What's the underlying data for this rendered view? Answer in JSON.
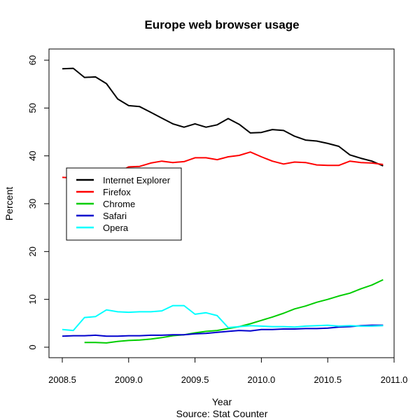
{
  "chart_data": {
    "type": "line",
    "title": "Europe web browser usage",
    "xlabel": "Year",
    "ylabel": "Percent",
    "caption": "Source: Stat Counter",
    "xlim": [
      2008.5,
      2010.92
    ],
    "ylim": [
      0,
      60
    ],
    "x_ticks": [
      2008.5,
      2009.0,
      2009.5,
      2010.0,
      2010.5,
      2011.0
    ],
    "x_tick_labels": [
      "2008.5",
      "2009.0",
      "2009.5",
      "2010.0",
      "2010.5",
      "2011.0"
    ],
    "y_ticks": [
      0,
      10,
      20,
      30,
      40,
      50,
      60
    ],
    "y_tick_labels": [
      "0",
      "10",
      "20",
      "30",
      "40",
      "50",
      "60"
    ],
    "grid": false,
    "legend_position": "center-left",
    "series": [
      {
        "name": "Internet Explorer",
        "color": "#000000",
        "points": [
          [
            2008.5,
            58.2
          ],
          [
            2008.583,
            58.3
          ],
          [
            2008.667,
            56.4
          ],
          [
            2008.75,
            56.5
          ],
          [
            2008.833,
            55.1
          ],
          [
            2008.917,
            51.9
          ],
          [
            2009.0,
            50.5
          ],
          [
            2009.083,
            50.3
          ],
          [
            2009.167,
            49.1
          ],
          [
            2009.25,
            47.9
          ],
          [
            2009.333,
            46.7
          ],
          [
            2009.417,
            46.0
          ],
          [
            2009.5,
            46.7
          ],
          [
            2009.583,
            46.0
          ],
          [
            2009.667,
            46.5
          ],
          [
            2009.75,
            47.8
          ],
          [
            2009.833,
            46.6
          ],
          [
            2009.917,
            44.8
          ],
          [
            2010.0,
            44.9
          ],
          [
            2010.083,
            45.5
          ],
          [
            2010.167,
            45.3
          ],
          [
            2010.25,
            44.1
          ],
          [
            2010.333,
            43.3
          ],
          [
            2010.417,
            43.1
          ],
          [
            2010.5,
            42.6
          ],
          [
            2010.583,
            42.0
          ],
          [
            2010.667,
            40.2
          ],
          [
            2010.75,
            39.5
          ],
          [
            2010.833,
            38.9
          ],
          [
            2010.917,
            37.9
          ]
        ]
      },
      {
        "name": "Firefox",
        "color": "#ff0000",
        "points": [
          [
            2008.5,
            35.5
          ],
          [
            2008.583,
            35.4
          ],
          [
            2008.667,
            35.3
          ],
          [
            2008.75,
            35.6
          ],
          [
            2008.833,
            35.9
          ],
          [
            2008.917,
            36.5
          ],
          [
            2009.0,
            37.7
          ],
          [
            2009.083,
            37.8
          ],
          [
            2009.167,
            38.5
          ],
          [
            2009.25,
            38.9
          ],
          [
            2009.333,
            38.6
          ],
          [
            2009.417,
            38.8
          ],
          [
            2009.5,
            39.6
          ],
          [
            2009.583,
            39.6
          ],
          [
            2009.667,
            39.2
          ],
          [
            2009.75,
            39.8
          ],
          [
            2009.833,
            40.1
          ],
          [
            2009.917,
            40.8
          ],
          [
            2010.0,
            39.8
          ],
          [
            2010.083,
            38.9
          ],
          [
            2010.167,
            38.3
          ],
          [
            2010.25,
            38.7
          ],
          [
            2010.333,
            38.6
          ],
          [
            2010.417,
            38.1
          ],
          [
            2010.5,
            38.0
          ],
          [
            2010.583,
            38.0
          ],
          [
            2010.667,
            38.9
          ],
          [
            2010.75,
            38.6
          ],
          [
            2010.833,
            38.5
          ],
          [
            2010.917,
            38.2
          ]
        ]
      },
      {
        "name": "Chrome",
        "color": "#00cd00",
        "points": [
          [
            2008.667,
            1.0
          ],
          [
            2008.75,
            1.0
          ],
          [
            2008.833,
            0.9
          ],
          [
            2008.917,
            1.2
          ],
          [
            2009.0,
            1.4
          ],
          [
            2009.083,
            1.5
          ],
          [
            2009.167,
            1.7
          ],
          [
            2009.25,
            2.0
          ],
          [
            2009.333,
            2.4
          ],
          [
            2009.417,
            2.6
          ],
          [
            2009.5,
            3.0
          ],
          [
            2009.583,
            3.3
          ],
          [
            2009.667,
            3.5
          ],
          [
            2009.75,
            3.9
          ],
          [
            2009.833,
            4.3
          ],
          [
            2009.917,
            4.9
          ],
          [
            2010.0,
            5.6
          ],
          [
            2010.083,
            6.3
          ],
          [
            2010.167,
            7.1
          ],
          [
            2010.25,
            8.0
          ],
          [
            2010.333,
            8.6
          ],
          [
            2010.417,
            9.4
          ],
          [
            2010.5,
            10.0
          ],
          [
            2010.583,
            10.7
          ],
          [
            2010.667,
            11.3
          ],
          [
            2010.75,
            12.2
          ],
          [
            2010.833,
            13.0
          ],
          [
            2010.917,
            14.1
          ]
        ]
      },
      {
        "name": "Safari",
        "color": "#0000cd",
        "points": [
          [
            2008.5,
            2.3
          ],
          [
            2008.583,
            2.4
          ],
          [
            2008.667,
            2.4
          ],
          [
            2008.75,
            2.5
          ],
          [
            2008.833,
            2.3
          ],
          [
            2008.917,
            2.3
          ],
          [
            2009.0,
            2.4
          ],
          [
            2009.083,
            2.4
          ],
          [
            2009.167,
            2.5
          ],
          [
            2009.25,
            2.5
          ],
          [
            2009.333,
            2.6
          ],
          [
            2009.417,
            2.6
          ],
          [
            2009.5,
            2.8
          ],
          [
            2009.583,
            2.9
          ],
          [
            2009.667,
            3.1
          ],
          [
            2009.75,
            3.3
          ],
          [
            2009.833,
            3.5
          ],
          [
            2009.917,
            3.4
          ],
          [
            2010.0,
            3.7
          ],
          [
            2010.083,
            3.7
          ],
          [
            2010.167,
            3.8
          ],
          [
            2010.25,
            3.8
          ],
          [
            2010.333,
            3.9
          ],
          [
            2010.417,
            3.9
          ],
          [
            2010.5,
            4.0
          ],
          [
            2010.583,
            4.2
          ],
          [
            2010.667,
            4.3
          ],
          [
            2010.75,
            4.5
          ],
          [
            2010.833,
            4.6
          ],
          [
            2010.917,
            4.6
          ]
        ]
      },
      {
        "name": "Opera",
        "color": "#00ffff",
        "points": [
          [
            2008.5,
            3.7
          ],
          [
            2008.583,
            3.5
          ],
          [
            2008.667,
            6.2
          ],
          [
            2008.75,
            6.4
          ],
          [
            2008.833,
            7.8
          ],
          [
            2008.917,
            7.4
          ],
          [
            2009.0,
            7.3
          ],
          [
            2009.083,
            7.4
          ],
          [
            2009.167,
            7.4
          ],
          [
            2009.25,
            7.6
          ],
          [
            2009.333,
            8.7
          ],
          [
            2009.417,
            8.7
          ],
          [
            2009.5,
            6.9
          ],
          [
            2009.583,
            7.2
          ],
          [
            2009.667,
            6.6
          ],
          [
            2009.75,
            4.1
          ],
          [
            2009.833,
            4.3
          ],
          [
            2009.917,
            4.5
          ],
          [
            2010.0,
            4.4
          ],
          [
            2010.083,
            4.3
          ],
          [
            2010.167,
            4.3
          ],
          [
            2010.25,
            4.2
          ],
          [
            2010.333,
            4.4
          ],
          [
            2010.417,
            4.5
          ],
          [
            2010.5,
            4.6
          ],
          [
            2010.583,
            4.4
          ],
          [
            2010.667,
            4.5
          ],
          [
            2010.75,
            4.4
          ],
          [
            2010.833,
            4.4
          ],
          [
            2010.917,
            4.5
          ]
        ]
      }
    ]
  }
}
